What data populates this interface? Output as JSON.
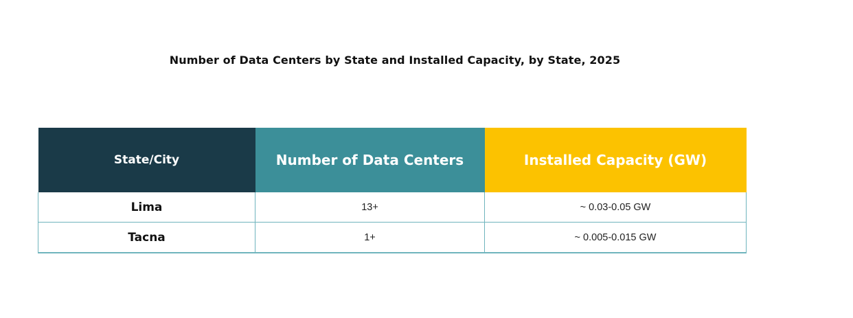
{
  "title": "Number of Data Centers  by State and Installed Capacity, by State, 2025",
  "table": {
    "headers": {
      "state": "State/City",
      "count": "Number of Data Centers",
      "capacity": "Installed Capacity (GW)"
    },
    "header_colors": {
      "state": "#1a3a48",
      "count": "#3c8f99",
      "capacity": "#fcc200"
    },
    "rows": [
      {
        "state": "Lima",
        "count": "13+",
        "capacity": "~ 0.03-0.05 GW"
      },
      {
        "state": "Tacna",
        "count": "1+",
        "capacity": "~ 0.005-0.015 GW"
      }
    ]
  }
}
